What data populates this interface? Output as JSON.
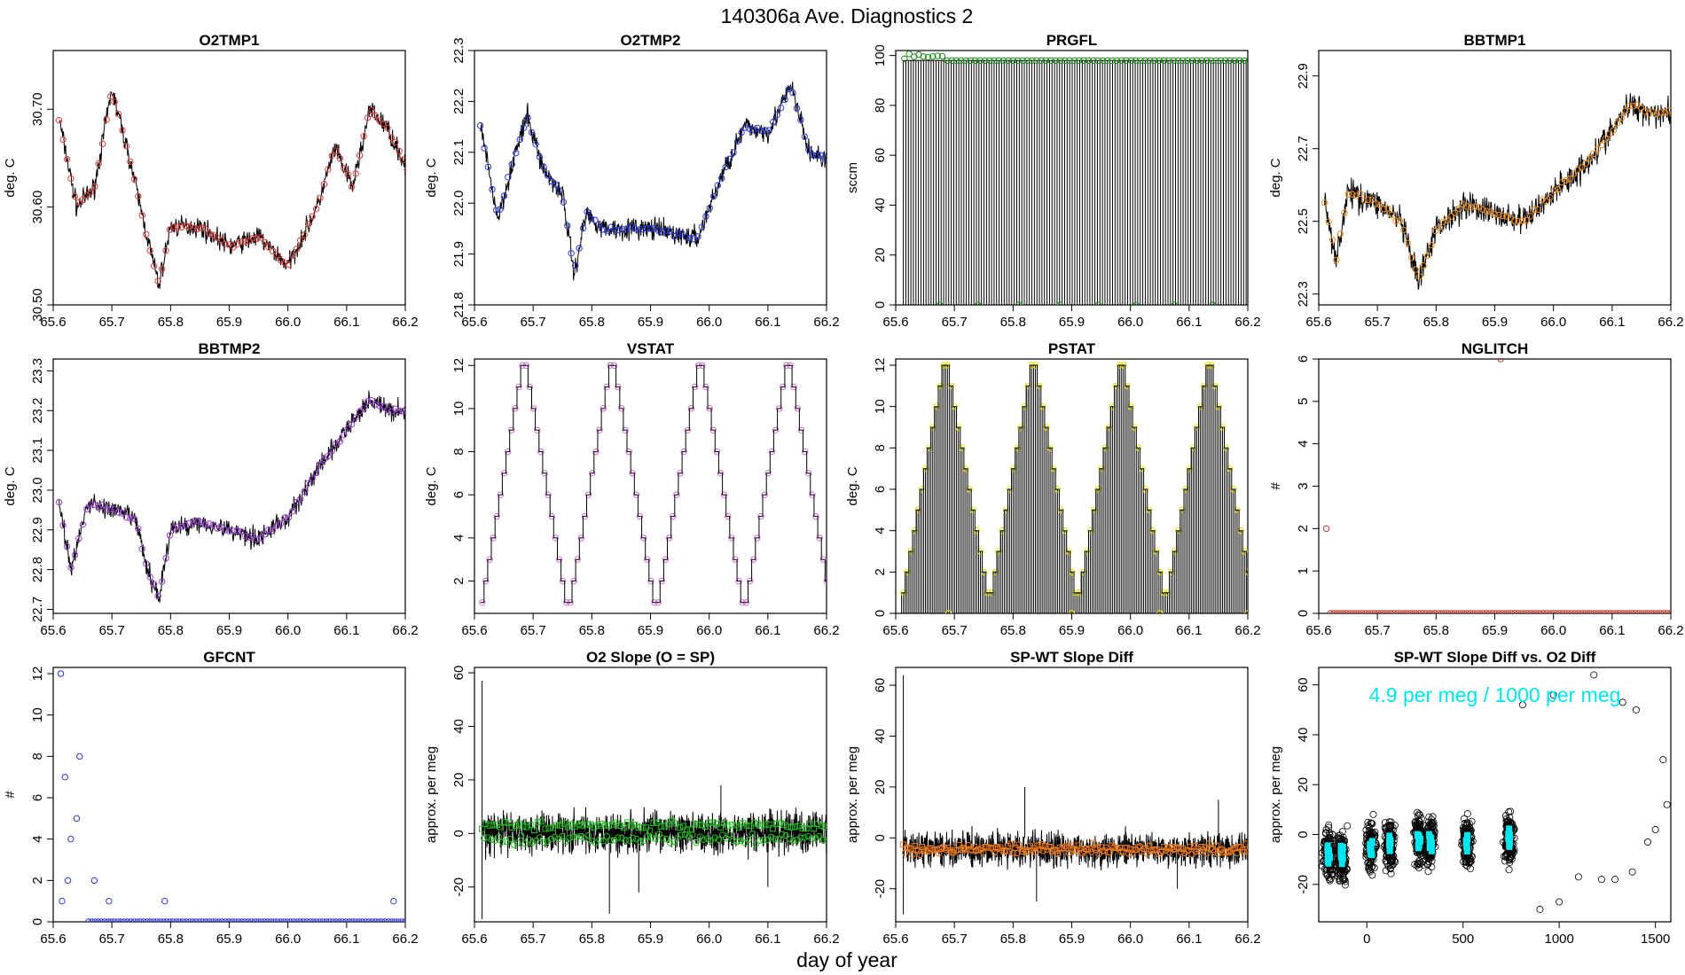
{
  "figure": {
    "title": "140306a   Ave. Diagnostics 2",
    "xlabel": "day of year"
  },
  "chart_data": [
    {
      "type": "line",
      "title": "O2TMP1",
      "ylabel": "deg. C",
      "xlim": [
        65.6,
        66.2
      ],
      "ylim": [
        30.5,
        30.76
      ],
      "xticks": [
        "65.6",
        "65.7",
        "65.8",
        "65.9",
        "66.0",
        "66.1",
        "66.2"
      ],
      "yticks": [
        "30.50",
        "30.60",
        "30.70"
      ],
      "ytick_values": [
        30.5,
        30.6,
        30.7
      ],
      "marker_color": "#e03c3c",
      "noise": 0.012,
      "points": 90,
      "curve": [
        [
          65.61,
          30.69
        ],
        [
          65.64,
          30.6
        ],
        [
          65.67,
          30.62
        ],
        [
          65.7,
          30.72
        ],
        [
          65.73,
          30.65
        ],
        [
          65.76,
          30.57
        ],
        [
          65.78,
          30.52
        ],
        [
          65.8,
          30.58
        ],
        [
          65.85,
          30.58
        ],
        [
          65.9,
          30.56
        ],
        [
          65.95,
          30.57
        ],
        [
          66.0,
          30.54
        ],
        [
          66.05,
          30.6
        ],
        [
          66.08,
          30.66
        ],
        [
          66.11,
          30.62
        ],
        [
          66.14,
          30.7
        ],
        [
          66.17,
          30.68
        ],
        [
          66.21,
          30.63
        ]
      ]
    },
    {
      "type": "line",
      "title": "O2TMP2",
      "ylabel": "deg. C",
      "xlim": [
        65.6,
        66.2
      ],
      "ylim": [
        21.8,
        22.3
      ],
      "xticks": [
        "65.6",
        "65.7",
        "65.8",
        "65.9",
        "66.0",
        "66.1",
        "66.2"
      ],
      "yticks": [
        "21.8",
        "21.9",
        "22.0",
        "22.1",
        "22.2",
        "22.3"
      ],
      "ytick_values": [
        21.8,
        21.9,
        22.0,
        22.1,
        22.2,
        22.3
      ],
      "marker_color": "#2b38d6",
      "noise": 0.025,
      "points": 90,
      "curve": [
        [
          65.61,
          22.15
        ],
        [
          65.64,
          21.97
        ],
        [
          65.67,
          22.1
        ],
        [
          65.69,
          22.17
        ],
        [
          65.72,
          22.06
        ],
        [
          65.75,
          22.02
        ],
        [
          65.77,
          21.86
        ],
        [
          65.79,
          21.98
        ],
        [
          65.82,
          21.95
        ],
        [
          65.9,
          21.95
        ],
        [
          65.98,
          21.93
        ],
        [
          66.02,
          22.05
        ],
        [
          66.06,
          22.15
        ],
        [
          66.1,
          22.14
        ],
        [
          66.14,
          22.23
        ],
        [
          66.17,
          22.1
        ],
        [
          66.21,
          22.08
        ]
      ]
    },
    {
      "type": "pulse",
      "title": "PRGFL",
      "ylabel": "sccm",
      "xlim": [
        65.6,
        66.2
      ],
      "ylim": [
        0,
        102
      ],
      "xticks": [
        "65.6",
        "65.7",
        "65.8",
        "65.9",
        "66.0",
        "66.1",
        "66.2"
      ],
      "yticks": [
        "0",
        "20",
        "40",
        "60",
        "80",
        "100"
      ],
      "ytick_values": [
        0,
        20,
        40,
        60,
        80,
        100
      ],
      "marker_color": "#1a8f1a",
      "high": 98,
      "low": 0,
      "pulses": 140,
      "low_points": [
        65.675,
        65.74,
        65.81,
        65.88,
        65.945,
        66.01,
        66.075,
        66.14,
        66.21
      ]
    },
    {
      "type": "line",
      "title": "BBTMP1",
      "ylabel": "deg. C",
      "xlim": [
        65.6,
        66.2
      ],
      "ylim": [
        22.27,
        22.97
      ],
      "xticks": [
        "65.6",
        "65.7",
        "65.8",
        "65.9",
        "66.0",
        "66.1",
        "66.2"
      ],
      "yticks": [
        "22.3",
        "22.5",
        "22.7",
        "22.9"
      ],
      "ytick_values": [
        22.3,
        22.5,
        22.7,
        22.9
      ],
      "marker_color": "#f08c1a",
      "noise": 0.045,
      "points": 90,
      "curve": [
        [
          65.61,
          22.55
        ],
        [
          65.63,
          22.4
        ],
        [
          65.65,
          22.58
        ],
        [
          65.7,
          22.55
        ],
        [
          65.74,
          22.5
        ],
        [
          65.77,
          22.33
        ],
        [
          65.8,
          22.48
        ],
        [
          65.85,
          22.55
        ],
        [
          65.9,
          22.52
        ],
        [
          65.95,
          22.5
        ],
        [
          66.0,
          22.58
        ],
        [
          66.05,
          22.65
        ],
        [
          66.1,
          22.75
        ],
        [
          66.13,
          22.82
        ],
        [
          66.17,
          22.8
        ],
        [
          66.21,
          22.8
        ]
      ]
    },
    {
      "type": "line",
      "title": "BBTMP2",
      "ylabel": "deg. C",
      "xlim": [
        65.6,
        66.2
      ],
      "ylim": [
        22.69,
        23.33
      ],
      "xticks": [
        "65.6",
        "65.7",
        "65.8",
        "65.9",
        "66.0",
        "66.1",
        "66.2"
      ],
      "yticks": [
        "22.7",
        "22.8",
        "22.9",
        "23.0",
        "23.1",
        "23.2",
        "23.3"
      ],
      "ytick_values": [
        22.7,
        22.8,
        22.9,
        23.0,
        23.1,
        23.2,
        23.3
      ],
      "marker_color": "#9b3fd6",
      "noise": 0.03,
      "points": 90,
      "curve": [
        [
          65.61,
          22.97
        ],
        [
          65.63,
          22.8
        ],
        [
          65.66,
          22.97
        ],
        [
          65.7,
          22.95
        ],
        [
          65.74,
          22.93
        ],
        [
          65.76,
          22.8
        ],
        [
          65.78,
          22.73
        ],
        [
          65.8,
          22.9
        ],
        [
          65.85,
          22.92
        ],
        [
          65.9,
          22.9
        ],
        [
          65.95,
          22.88
        ],
        [
          66.0,
          22.93
        ],
        [
          66.05,
          23.05
        ],
        [
          66.1,
          23.15
        ],
        [
          66.14,
          23.23
        ],
        [
          66.17,
          23.2
        ],
        [
          66.21,
          23.2
        ]
      ]
    },
    {
      "type": "step",
      "title": "VSTAT",
      "ylabel": "deg. C",
      "xlim": [
        65.6,
        66.2
      ],
      "ylim": [
        0.5,
        12.3
      ],
      "xticks": [
        "65.6",
        "65.7",
        "65.8",
        "65.9",
        "66.0",
        "66.1",
        "66.2"
      ],
      "yticks": [
        "2",
        "4",
        "6",
        "8",
        "10",
        "12"
      ],
      "ytick_values": [
        2,
        4,
        6,
        8,
        10,
        12
      ],
      "marker_color": "#d36cd6",
      "pattern": [
        1,
        2,
        3,
        4,
        5,
        6,
        7,
        8,
        9,
        10,
        11,
        12,
        12,
        11,
        10,
        9,
        8,
        7,
        6,
        5,
        4,
        3,
        2,
        1
      ],
      "cycles": 4,
      "x0": 65.61,
      "x1": 66.21
    },
    {
      "type": "pulse-step",
      "title": "PSTAT",
      "ylabel": "deg. C",
      "xlim": [
        65.6,
        66.2
      ],
      "ylim": [
        0,
        12.3
      ],
      "xticks": [
        "65.6",
        "65.7",
        "65.8",
        "65.9",
        "66.0",
        "66.1",
        "66.2"
      ],
      "yticks": [
        "0",
        "2",
        "4",
        "6",
        "8",
        "10",
        "12"
      ],
      "ytick_values": [
        0,
        2,
        4,
        6,
        8,
        10,
        12
      ],
      "marker_color": "#e8e800",
      "pattern": [
        1,
        2,
        3,
        4,
        5,
        6,
        7,
        8,
        9,
        10,
        11,
        12,
        12,
        11,
        10,
        9,
        8,
        7,
        6,
        5,
        4,
        3,
        2,
        1
      ],
      "cycles": 4,
      "x0": 65.61,
      "x1": 66.21
    },
    {
      "type": "scatter",
      "title": "NGLITCH",
      "ylabel": "#",
      "xlim": [
        65.6,
        66.2
      ],
      "ylim": [
        0,
        6
      ],
      "xticks": [
        "65.6",
        "65.7",
        "65.8",
        "65.9",
        "66.0",
        "66.1",
        "66.2"
      ],
      "yticks": [
        "0",
        "1",
        "2",
        "3",
        "4",
        "5",
        "6"
      ],
      "ytick_values": [
        0,
        1,
        2,
        3,
        4,
        5,
        6
      ],
      "marker_color": "#c0392b",
      "baseline": 0,
      "points": 110,
      "x0": 65.62,
      "x1": 66.21,
      "outliers": [
        [
          65.613,
          2
        ],
        [
          65.91,
          6
        ]
      ]
    },
    {
      "type": "scatter",
      "title": "GFCNT",
      "ylabel": "#",
      "xlim": [
        65.6,
        66.2
      ],
      "ylim": [
        0,
        12.3
      ],
      "xticks": [
        "65.6",
        "65.7",
        "65.8",
        "65.9",
        "66.0",
        "66.1",
        "66.2"
      ],
      "yticks": [
        "0",
        "2",
        "4",
        "6",
        "8",
        "10",
        "12"
      ],
      "ytick_values": [
        0,
        2,
        4,
        6,
        8,
        10,
        12
      ],
      "marker_color": "#2b38d6",
      "baseline": 0,
      "points": 100,
      "x0": 65.66,
      "x1": 66.21,
      "outliers": [
        [
          65.613,
          12
        ],
        [
          65.615,
          1
        ],
        [
          65.62,
          7
        ],
        [
          65.625,
          2
        ],
        [
          65.63,
          4
        ],
        [
          65.64,
          5
        ],
        [
          65.645,
          8
        ],
        [
          65.67,
          2
        ],
        [
          65.695,
          1
        ],
        [
          65.79,
          1
        ],
        [
          66.18,
          1
        ]
      ]
    },
    {
      "type": "noise-band",
      "title": "O2 Slope (O = SP)",
      "ylabel": "approx. per meg",
      "xlim": [
        65.6,
        66.2
      ],
      "ylim": [
        -33,
        62
      ],
      "xticks": [
        "65.6",
        "65.7",
        "65.8",
        "65.9",
        "66.0",
        "66.1",
        "66.2"
      ],
      "yticks": [
        "-20",
        "0",
        "20",
        "40",
        "60"
      ],
      "ytick_values": [
        -20,
        0,
        20,
        40,
        60
      ],
      "marker_color": "#1fbf1f",
      "band": 8,
      "series_a": 3,
      "series_b": -2,
      "spikes": [
        [
          65.613,
          57
        ],
        [
          65.613,
          -32
        ],
        [
          65.83,
          -30
        ],
        [
          65.88,
          -22
        ],
        [
          66.02,
          18
        ],
        [
          66.1,
          -20
        ]
      ]
    },
    {
      "type": "noise-band",
      "title": "SP-WT Slope Diff",
      "ylabel": "approx. per meg",
      "xlim": [
        65.6,
        66.2
      ],
      "ylim": [
        -33,
        67
      ],
      "xticks": [
        "65.6",
        "65.7",
        "65.8",
        "65.9",
        "66.0",
        "66.1",
        "66.2"
      ],
      "yticks": [
        "-20",
        "0",
        "20",
        "40",
        "60"
      ],
      "ytick_values": [
        -20,
        0,
        20,
        40,
        60
      ],
      "marker_color": "#f07a1a",
      "band": 7,
      "series_a": -4,
      "series_b": -5,
      "spikes": [
        [
          65.613,
          64
        ],
        [
          65.613,
          -30
        ],
        [
          65.82,
          20
        ],
        [
          65.84,
          -25
        ],
        [
          66.08,
          -20
        ],
        [
          66.15,
          15
        ]
      ]
    },
    {
      "type": "scatter-cloud",
      "title": "SP-WT Slope Diff vs. O2 Diff",
      "ylabel": "approx. per meg",
      "xlim": [
        -250,
        1580
      ],
      "ylim": [
        -35,
        67
      ],
      "xticks": [
        "0",
        "500",
        "1000",
        "1500"
      ],
      "xtick_values": [
        0,
        500,
        1000,
        1500
      ],
      "yticks": [
        "-20",
        "0",
        "20",
        "40",
        "60"
      ],
      "ytick_values": [
        -20,
        0,
        20,
        40,
        60
      ],
      "annotation": "4.9 per meg / 1000 per meg",
      "annot_color": "#00e5ee",
      "clusters": [
        [
          -200,
          -8
        ],
        [
          -130,
          -8
        ],
        [
          20,
          -5
        ],
        [
          120,
          -4
        ],
        [
          270,
          -2
        ],
        [
          330,
          -3
        ],
        [
          520,
          -3
        ],
        [
          740,
          -1
        ]
      ],
      "sparse": [
        [
          1180,
          64
        ],
        [
          970,
          56
        ],
        [
          1330,
          53
        ],
        [
          1400,
          50
        ],
        [
          810,
          52
        ],
        [
          1540,
          30
        ],
        [
          1560,
          12
        ],
        [
          1500,
          2
        ],
        [
          1460,
          -3
        ],
        [
          1380,
          -15
        ],
        [
          1220,
          -18
        ],
        [
          1100,
          -17
        ],
        [
          1000,
          -27
        ],
        [
          900,
          -30
        ],
        [
          1290,
          -18
        ]
      ]
    }
  ]
}
